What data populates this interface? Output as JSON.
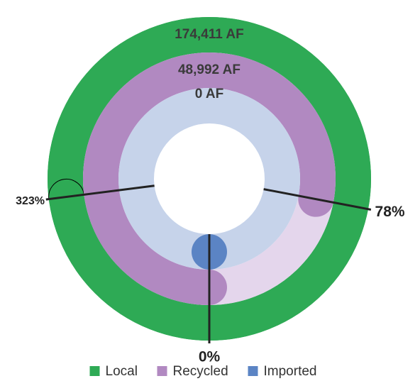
{
  "chart_data": {
    "type": "radial",
    "series": [
      {
        "name": "Local",
        "color": "#2eaa55",
        "track_color": "#2eaa55",
        "values": [
          174411
        ],
        "value_labels": [
          "174,411 AF"
        ],
        "percent": 323,
        "percent_label": "323%"
      },
      {
        "name": "Recycled",
        "color": "#b189c1",
        "track_color": "#e4d6ec",
        "values": [
          48992
        ],
        "value_labels": [
          "48,992 AF"
        ],
        "percent": 78,
        "percent_label": "78%"
      },
      {
        "name": "Imported",
        "color": "#5b84c4",
        "track_color": "#c6d3ea",
        "values": [
          0
        ],
        "value_labels": [
          "0 AF"
        ],
        "percent": 0,
        "percent_label": "0%"
      }
    ]
  }
}
